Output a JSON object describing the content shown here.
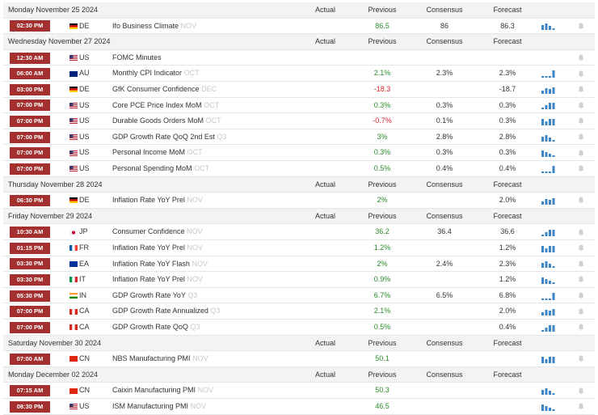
{
  "columns": [
    "Actual",
    "Previous",
    "Consensus",
    "Forecast"
  ],
  "days": [
    {
      "date": "Monday November 25 2024",
      "events": [
        {
          "time": "02:30 PM",
          "country": "DE",
          "event": "Ifo Business Climate",
          "period": "NOV",
          "previous": "86.5",
          "consensus": "86",
          "forecast": "86.3"
        }
      ]
    },
    {
      "date": "Wednesday November 27 2024",
      "events": [
        {
          "time": "12:30 AM",
          "country": "US",
          "event": "FOMC Minutes"
        },
        {
          "time": "06:00 AM",
          "country": "AU",
          "event": "Monthly CPI Indicator",
          "period": "OCT",
          "previous": "2.1%",
          "consensus": "2.3%",
          "forecast": "2.3%"
        },
        {
          "time": "03:00 PM",
          "country": "DE",
          "event": "GfK Consumer Confidence",
          "period": "DEC",
          "previous": "-18.3",
          "forecast": "-18.7"
        },
        {
          "time": "07:00 PM",
          "country": "US",
          "event": "Core PCE Price Index MoM",
          "period": "OCT",
          "previous": "0.3%",
          "consensus": "0.3%",
          "forecast": "0.3%"
        },
        {
          "time": "07:00 PM",
          "country": "US",
          "event": "Durable Goods Orders MoM",
          "period": "OCT",
          "previous": "-0.7%",
          "consensus": "0.1%",
          "forecast": "0.3%"
        },
        {
          "time": "07:00 PM",
          "country": "US",
          "event": "GDP Growth Rate QoQ 2nd Est",
          "period": "Q3",
          "previous": "3%",
          "consensus": "2.8%",
          "forecast": "2.8%"
        },
        {
          "time": "07:00 PM",
          "country": "US",
          "event": "Personal Income MoM",
          "period": "OCT",
          "previous": "0.3%",
          "consensus": "0.3%",
          "forecast": "0.3%"
        },
        {
          "time": "07:00 PM",
          "country": "US",
          "event": "Personal Spending MoM",
          "period": "OCT",
          "previous": "0.5%",
          "consensus": "0.4%",
          "forecast": "0.4%"
        }
      ]
    },
    {
      "date": "Thursday November 28 2024",
      "events": [
        {
          "time": "06:30 PM",
          "country": "DE",
          "event": "Inflation Rate YoY Prel",
          "period": "NOV",
          "previous": "2%",
          "forecast": "2.0%"
        }
      ]
    },
    {
      "date": "Friday November 29 2024",
      "events": [
        {
          "time": "10:30 AM",
          "country": "JP",
          "event": "Consumer Confidence",
          "period": "NOV",
          "previous": "36.2",
          "consensus": "36.4",
          "forecast": "36.6"
        },
        {
          "time": "01:15 PM",
          "country": "FR",
          "event": "Inflation Rate YoY Prel",
          "period": "NOV",
          "previous": "1.2%",
          "forecast": "1.2%"
        },
        {
          "time": "03:30 PM",
          "country": "EA",
          "event": "Inflation Rate YoY Flash",
          "period": "NOV",
          "previous": "2%",
          "consensus": "2.4%",
          "forecast": "2.3%"
        },
        {
          "time": "03:30 PM",
          "country": "IT",
          "event": "Inflation Rate YoY Prel",
          "period": "NOV",
          "previous": "0.9%",
          "forecast": "1.2%"
        },
        {
          "time": "05:30 PM",
          "country": "IN",
          "event": "GDP Growth Rate YoY",
          "period": "Q3",
          "previous": "6.7%",
          "consensus": "6.5%",
          "forecast": "6.8%"
        },
        {
          "time": "07:00 PM",
          "country": "CA",
          "event": "GDP Growth Rate Annualized",
          "period": "Q3",
          "previous": "2.1%",
          "forecast": "2.0%"
        },
        {
          "time": "07:00 PM",
          "country": "CA",
          "event": "GDP Growth Rate QoQ",
          "period": "Q3",
          "previous": "0.5%",
          "forecast": "0.4%"
        }
      ]
    },
    {
      "date": "Saturday November 30 2024",
      "events": [
        {
          "time": "07:00 AM",
          "country": "CN",
          "event": "NBS Manufacturing PMI",
          "period": "NOV",
          "previous": "50.1"
        }
      ]
    },
    {
      "date": "Monday December 02 2024",
      "events": [
        {
          "time": "07:15 AM",
          "country": "CN",
          "event": "Caixin Manufacturing PMI",
          "period": "NOV",
          "previous": "50.3"
        },
        {
          "time": "08:30 PM",
          "country": "US",
          "event": "ISM Manufacturing PMI",
          "period": "NOV",
          "previous": "46.5"
        }
      ]
    }
  ]
}
